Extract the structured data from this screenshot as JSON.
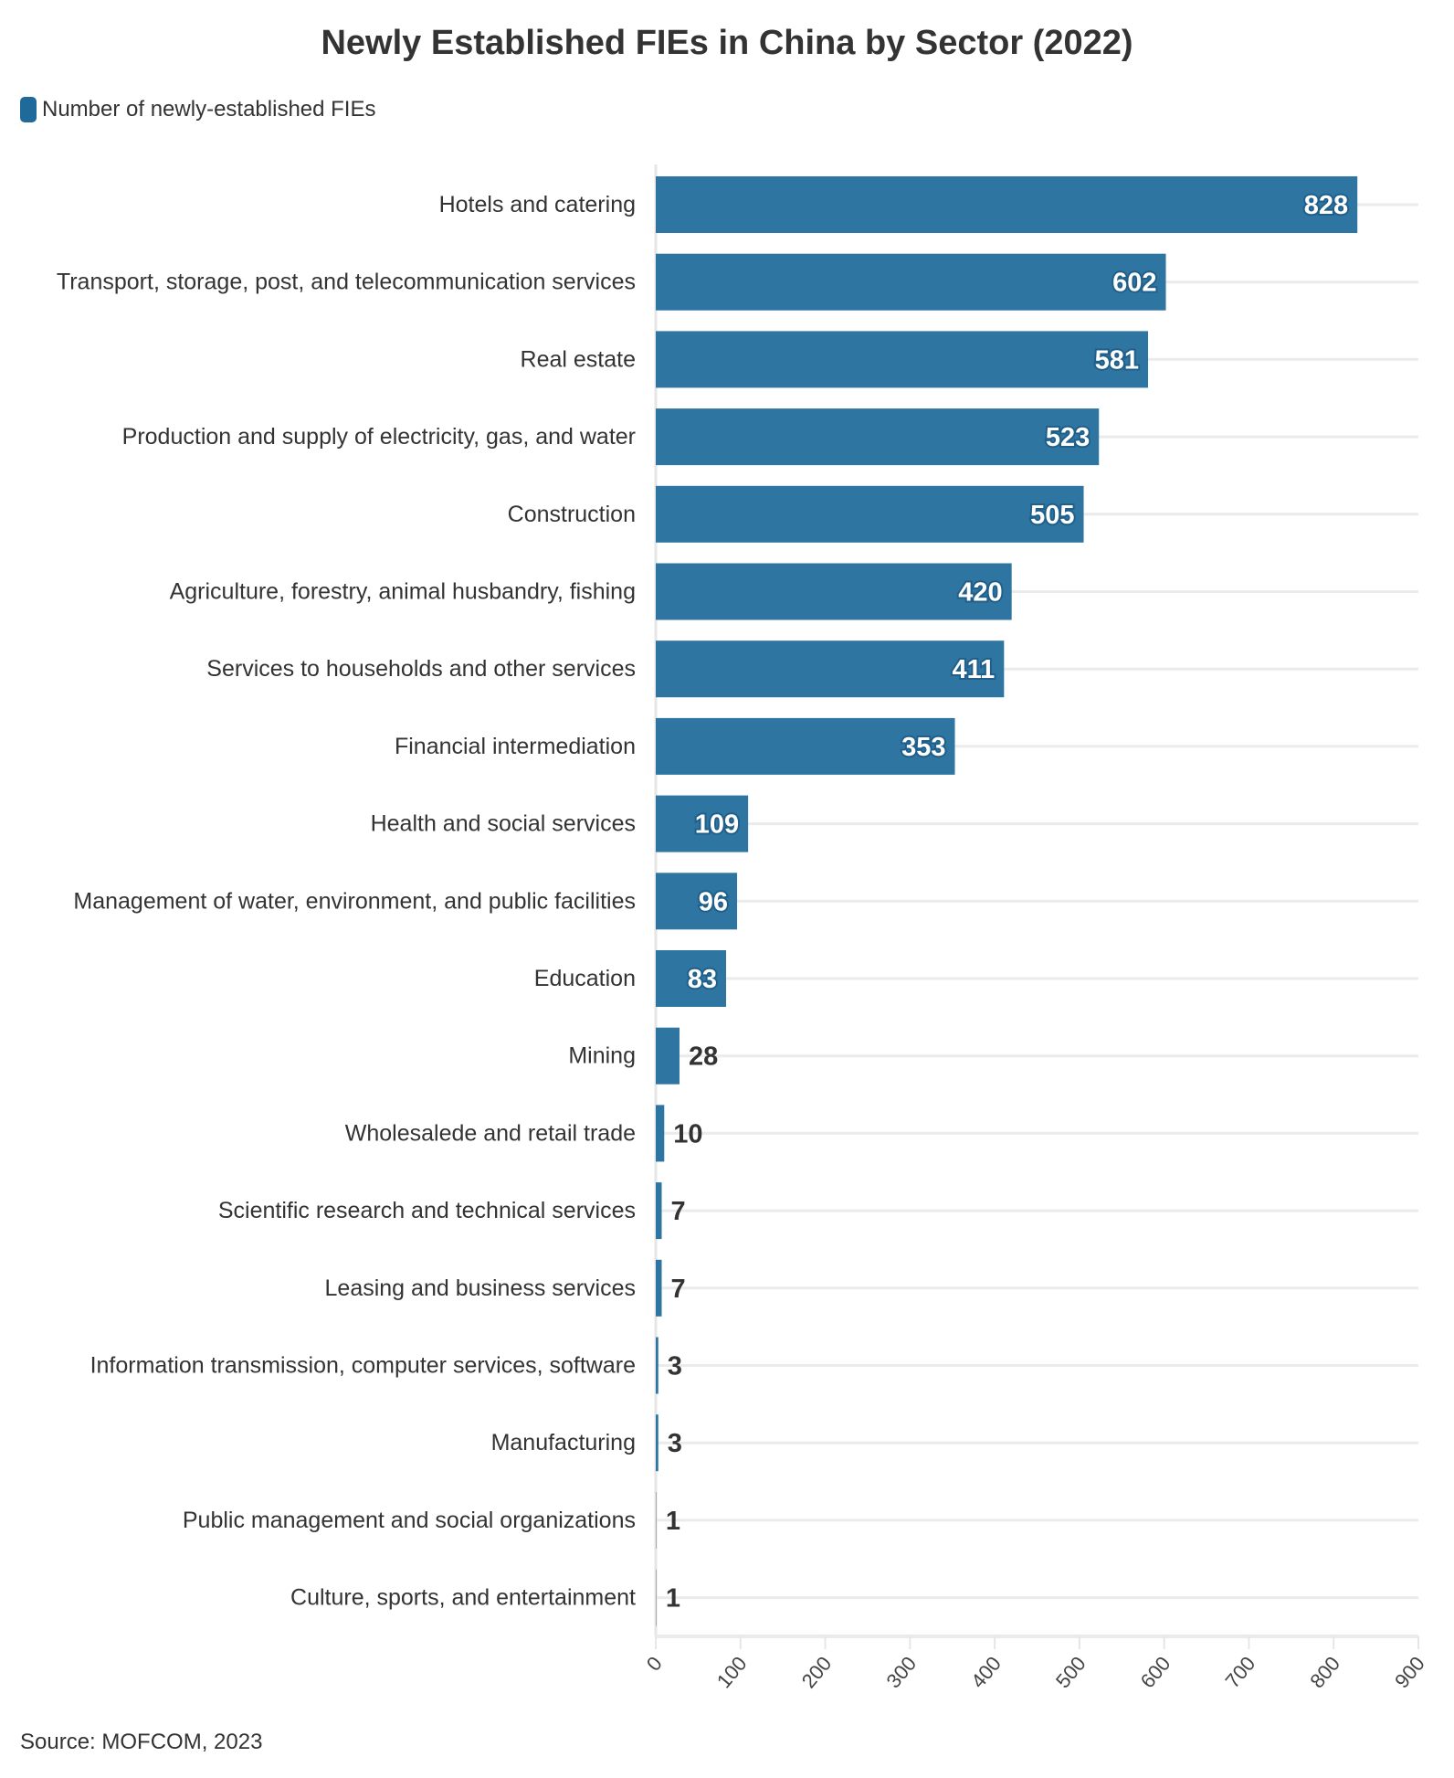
{
  "chart_data": {
    "type": "bar",
    "orientation": "horizontal",
    "title": "Newly Established FIEs in China by Sector (2022)",
    "legend": {
      "position": "top-left",
      "entries": [
        "Number of newly-established FIEs"
      ]
    },
    "series": [
      {
        "name": "Number of newly-established FIEs",
        "color": "#2f75a1"
      }
    ],
    "categories": [
      "Hotels and catering",
      "Transport, storage, post, and telecommunication services",
      "Real estate",
      "Production and supply of electricity, gas, and water",
      "Construction",
      "Agriculture, forestry, animal husbandry, fishing",
      "Services to households and other services",
      "Financial intermediation",
      "Health and social services",
      "Management of water, environment, and public facilities",
      "Education",
      "Mining",
      "Wholesalede and retail trade",
      "Scientific research and technical services",
      "Leasing and business services",
      "Information transmission, computer services, software",
      "Manufacturing",
      "Public management and social organizations",
      "Culture, sports, and entertainment"
    ],
    "values": [
      828,
      602,
      581,
      523,
      505,
      420,
      411,
      353,
      109,
      96,
      83,
      28,
      10,
      7,
      7,
      3,
      3,
      1,
      1
    ],
    "xlim": [
      0,
      900
    ],
    "xticks": [
      "0",
      "100",
      "200",
      "300",
      "400",
      "500",
      "600",
      "700",
      "800",
      "900"
    ],
    "grid": true,
    "source": "Source: MOFCOM, 2023"
  }
}
